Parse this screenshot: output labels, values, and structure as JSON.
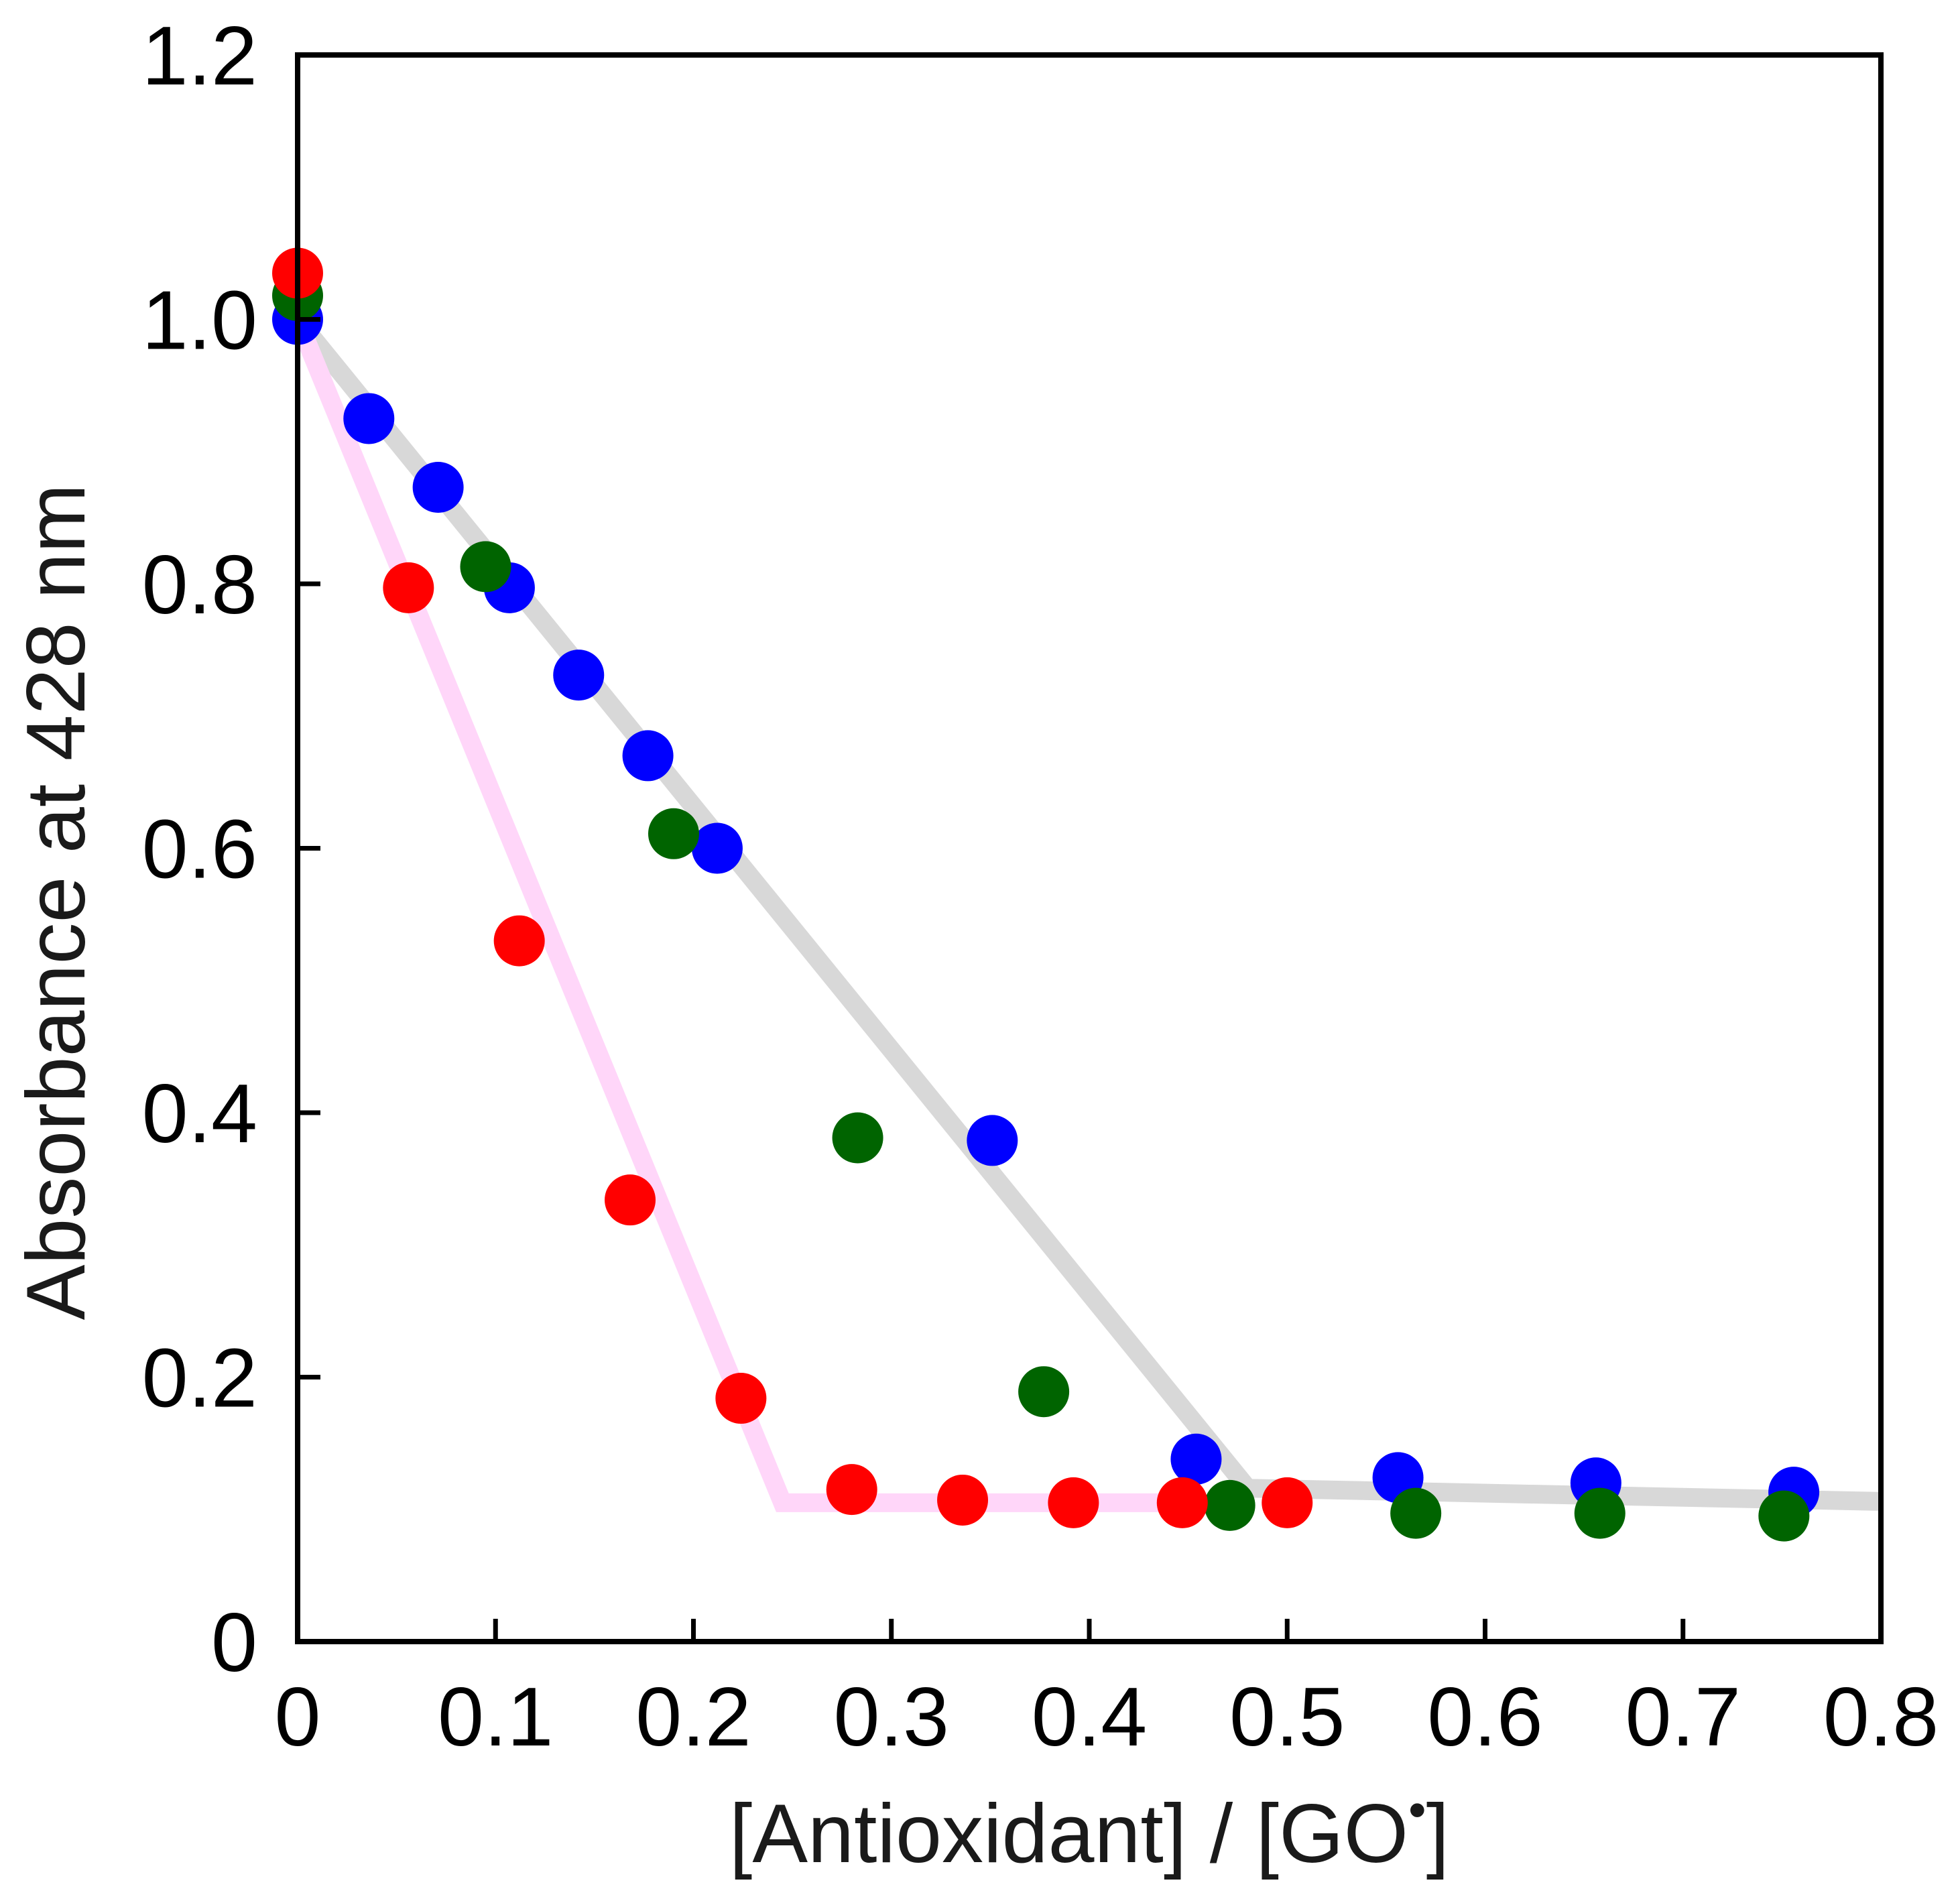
{
  "chart_data": {
    "type": "scatter",
    "xlabel": "[Antioxidant] / [GO",
    "xlabel_superscript": "•",
    "xlabel_suffix": "]",
    "ylabel": "Absorbance at 428 nm",
    "xlim": [
      0,
      0.8
    ],
    "ylim": [
      0,
      1.2
    ],
    "x_ticks": [
      0,
      0.1,
      0.2,
      0.3,
      0.4,
      0.5,
      0.6,
      0.7,
      0.8
    ],
    "x_tick_labels": [
      "0",
      "0.1",
      "0.2",
      "0.3",
      "0.4",
      "0.5",
      "0.6",
      "0.7",
      "0.8"
    ],
    "y_ticks": [
      0,
      0.2,
      0.4,
      0.6,
      0.8,
      1.0,
      1.2
    ],
    "y_tick_labels": [
      "0",
      "0.2",
      "0.4",
      "0.6",
      "0.8",
      "1.0",
      "1.2"
    ],
    "grid": false,
    "series": [
      {
        "color": "#0000ff",
        "points": [
          [
            0,
            1.0
          ],
          [
            0.036,
            0.925
          ],
          [
            0.071,
            0.873
          ],
          [
            0.107,
            0.797
          ],
          [
            0.142,
            0.731
          ],
          [
            0.177,
            0.67
          ],
          [
            0.212,
            0.6
          ],
          [
            0.351,
            0.379
          ],
          [
            0.454,
            0.138
          ],
          [
            0.556,
            0.124
          ],
          [
            0.656,
            0.12
          ],
          [
            0.756,
            0.113
          ]
        ]
      },
      {
        "color": "#006400",
        "points": [
          [
            0,
            1.018
          ],
          [
            0.095,
            0.813
          ],
          [
            0.19,
            0.611
          ],
          [
            0.283,
            0.381
          ],
          [
            0.377,
            0.189
          ],
          [
            0.471,
            0.103
          ],
          [
            0.565,
            0.097
          ],
          [
            0.658,
            0.097
          ],
          [
            0.751,
            0.095
          ]
        ]
      },
      {
        "color": "#ff0000",
        "points": [
          [
            0,
            1.035
          ],
          [
            0.056,
            0.797
          ],
          [
            0.112,
            0.53
          ],
          [
            0.168,
            0.334
          ],
          [
            0.224,
            0.184
          ],
          [
            0.28,
            0.115
          ],
          [
            0.336,
            0.107
          ],
          [
            0.392,
            0.105
          ],
          [
            0.447,
            0.105
          ],
          [
            0.5,
            0.105
          ]
        ]
      }
    ],
    "fit_lines": [
      {
        "color": "#d8d8d8",
        "points": [
          [
            0,
            1.0
          ],
          [
            0.48,
            0.116
          ],
          [
            0.8,
            0.106
          ]
        ]
      },
      {
        "color": "#ffd6f9",
        "points": [
          [
            0,
            1.0
          ],
          [
            0.245,
            0.105
          ],
          [
            0.45,
            0.105
          ]
        ]
      }
    ]
  }
}
